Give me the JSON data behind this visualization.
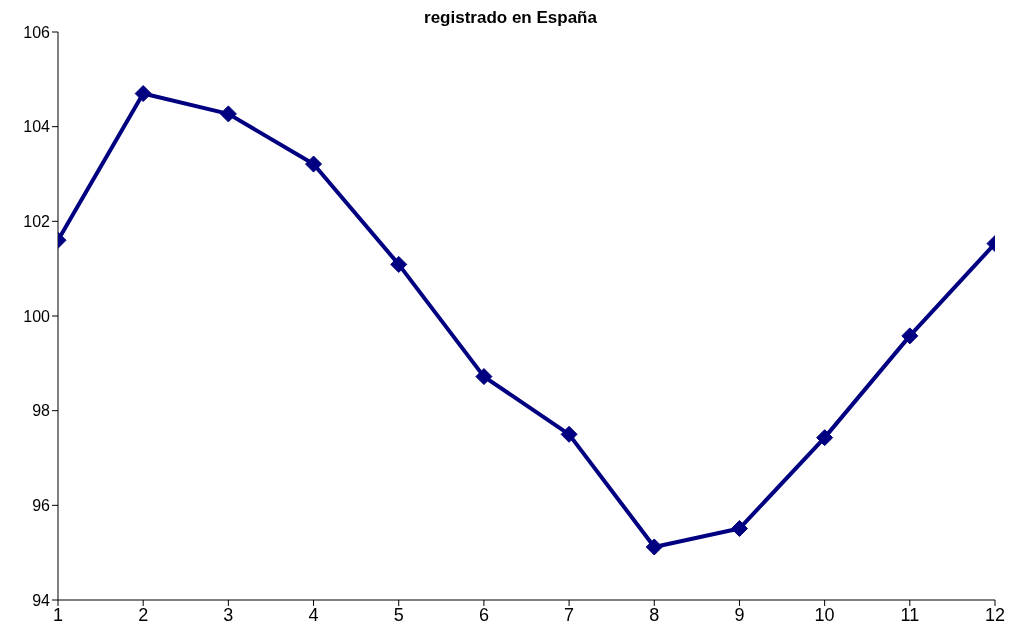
{
  "chart_data": {
    "type": "line",
    "title": "registrado en España",
    "x": [
      1,
      2,
      3,
      4,
      5,
      6,
      7,
      8,
      9,
      10,
      11,
      12
    ],
    "series": [
      {
        "color": "#000080",
        "values": [
          101.6,
          104.7,
          104.27,
          103.21,
          101.09,
          98.72,
          97.5,
          95.12,
          95.51,
          97.43,
          99.58,
          101.53
        ]
      }
    ],
    "xlim": [
      1,
      12
    ],
    "xticks": [
      1,
      2,
      3,
      4,
      5,
      6,
      7,
      8,
      9,
      10,
      11,
      12
    ],
    "ylim": [
      94,
      106
    ],
    "yticks": [
      94,
      96,
      98,
      100,
      102,
      104,
      106
    ],
    "grid": false,
    "legend": false,
    "marker": "diamond",
    "line_style": "solid"
  }
}
